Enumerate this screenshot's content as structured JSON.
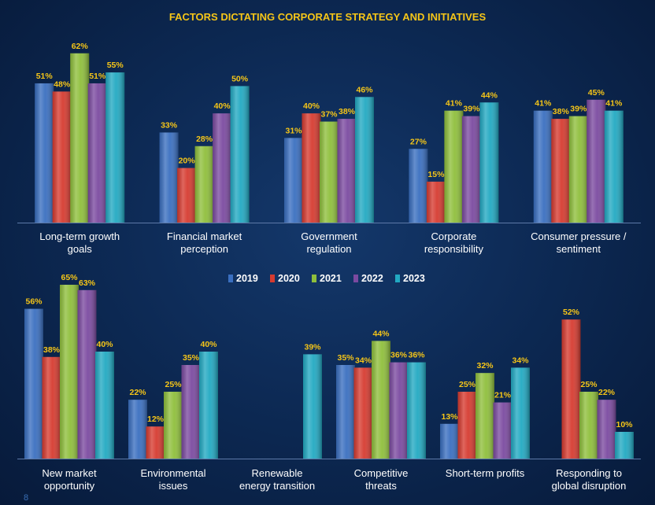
{
  "page_number": "8",
  "chart_data": {
    "type": "bar",
    "title": "FACTORS DICTATING CORPORATE STRATEGY AND INITIATIVES",
    "legend_position": "middle-center",
    "series_names": [
      "2019",
      "2020",
      "2021",
      "2022",
      "2023"
    ],
    "colors": [
      "#3a6fc0",
      "#d63b30",
      "#8fbf3c",
      "#7b4aa0",
      "#22a9c2"
    ],
    "ylim": [
      0,
      70
    ],
    "grid": false,
    "panels": [
      {
        "categories": [
          [
            "Long-term growth",
            "goals"
          ],
          [
            "Financial market",
            "perception"
          ],
          [
            "Government",
            "regulation"
          ],
          [
            "Corporate",
            "responsibility"
          ],
          [
            "Consumer pressure /",
            "sentiment"
          ]
        ],
        "values": [
          [
            51,
            48,
            62,
            51,
            55
          ],
          [
            33,
            20,
            28,
            40,
            50
          ],
          [
            31,
            40,
            37,
            38,
            46
          ],
          [
            27,
            15,
            41,
            39,
            44
          ],
          [
            41,
            38,
            39,
            45,
            41
          ]
        ],
        "labels": [
          [
            "51%",
            "48%",
            "62%",
            "51%",
            "55%"
          ],
          [
            "33%",
            "20%",
            "28%",
            "40%",
            "50%"
          ],
          [
            "31%",
            "40%",
            "37%",
            "38%",
            "46%"
          ],
          [
            "27%",
            "15%",
            "41%",
            "39%",
            "44%"
          ],
          [
            "41%",
            "38%",
            "39%",
            "45%",
            "41%"
          ]
        ]
      },
      {
        "categories": [
          [
            "New market",
            "opportunity"
          ],
          [
            "Environmental",
            "issues"
          ],
          [
            "Renewable",
            "energy transition"
          ],
          [
            "Competitive",
            "threats"
          ],
          [
            "Short-term profits"
          ],
          [
            "Responding to",
            "global disruption"
          ]
        ],
        "values": [
          [
            56,
            38,
            65,
            63,
            40
          ],
          [
            22,
            12,
            25,
            35,
            40
          ],
          [
            null,
            null,
            null,
            null,
            39
          ],
          [
            35,
            34,
            44,
            36,
            36
          ],
          [
            13,
            25,
            32,
            21,
            34
          ],
          [
            null,
            52,
            25,
            22,
            10
          ]
        ],
        "labels": [
          [
            "56%",
            "38%",
            "65%",
            "63%",
            "40%"
          ],
          [
            "22%",
            "12%",
            "25%",
            "35%",
            "40%"
          ],
          [
            null,
            null,
            null,
            null,
            "39%"
          ],
          [
            "35%",
            "34%",
            "44%",
            "36%",
            "36%"
          ],
          [
            "13%",
            "25%",
            "32%",
            "21%",
            "34%"
          ],
          [
            null,
            "52%",
            "25%",
            "22%",
            "10%"
          ]
        ]
      }
    ]
  }
}
